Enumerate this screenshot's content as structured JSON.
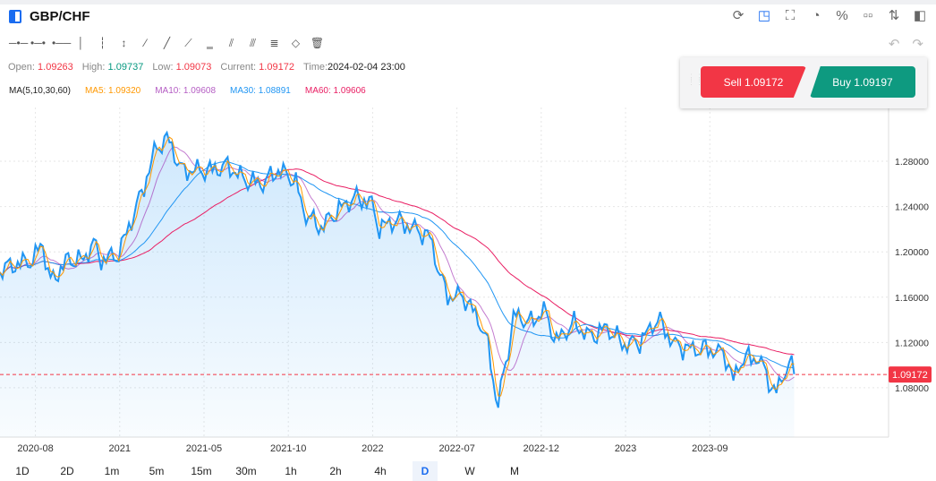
{
  "header": {
    "symbol": "GBP/CHF"
  },
  "right_tools": [
    "refresh-icon",
    "drawing-mode-icon",
    "indicator-board-icon",
    "pie-chart-icon",
    "percent-icon",
    "grid-layout-icon",
    "sort-icon",
    "panel-toggle-icon"
  ],
  "draw_tools": [
    {
      "name": "horizontal-ray-icon",
      "g": "─•─"
    },
    {
      "name": "horizontal-segment-icon",
      "g": "•─•"
    },
    {
      "name": "horizontal-line-icon",
      "g": "•──"
    },
    {
      "name": "vertical-ray-icon",
      "g": "│"
    },
    {
      "name": "vertical-segment-icon",
      "g": "┆"
    },
    {
      "name": "vertical-line-icon",
      "g": "↕"
    },
    {
      "name": "ray-icon",
      "g": "⁄"
    },
    {
      "name": "segment-icon",
      "g": "╱"
    },
    {
      "name": "straight-line-icon",
      "g": "⟋"
    },
    {
      "name": "price-line-icon",
      "g": "‗"
    },
    {
      "name": "parallel-lines-icon",
      "g": "⫽"
    },
    {
      "name": "price-channel-icon",
      "g": "⫻"
    },
    {
      "name": "fibonacci-icon",
      "g": "≣"
    },
    {
      "name": "eraser-icon",
      "g": "◇"
    },
    {
      "name": "trash-icon",
      "g": "🗑"
    }
  ],
  "info": {
    "open_label": "Open: ",
    "open": "1.09263",
    "high_label": "High: ",
    "high": "1.09737",
    "low_label": "Low: ",
    "low": "1.09073",
    "current_label": "Current: ",
    "current": "1.09172",
    "time_label": "Time:",
    "time": "2024-02-04 23:00"
  },
  "ma": {
    "label": "MA(5,10,30,60)",
    "ma5": "MA5: 1.09320",
    "ma10": "MA10: 1.09608",
    "ma30": "MA30: 1.08891",
    "ma60": "MA60: 1.09606"
  },
  "trade": {
    "sell": "Sell 1.09172",
    "buy": "Buy 1.09197"
  },
  "periods": [
    "1D",
    "2D",
    "1m",
    "5m",
    "15m",
    "30m",
    "1h",
    "2h",
    "4h",
    "D",
    "W",
    "M"
  ],
  "selected_period": "D",
  "colors": {
    "close": "#2196f3",
    "ma5": "#ff9800",
    "ma10": "#9c27b0",
    "ma30": "#2196f3",
    "ma60": "#e91e63",
    "down": "#f23645",
    "up": "#089981"
  },
  "chart_data": {
    "type": "area",
    "title": "GBP/CHF",
    "x_unit": "months since 2020-01",
    "x": [
      4.9,
      5.9,
      6.9,
      7.4,
      7.9,
      8.9,
      9.9,
      10.4,
      10.9,
      11.9,
      12.9,
      13.4,
      14.15,
      14.9,
      15.65,
      16.4,
      17.4,
      18.4,
      19.4,
      20.4,
      21.4,
      22.4,
      22.9,
      23.9,
      24.9,
      25.9,
      26.9,
      27.4,
      28.4,
      29.4,
      30.4,
      30.9,
      31.4,
      32.4,
      33.4,
      33.9,
      34.4,
      34.9,
      35.4,
      36.4,
      37.15,
      37.9,
      38.9,
      39.9,
      40.9,
      41.9,
      42.9,
      43.9,
      44.9,
      45.9,
      46.9,
      47.9,
      48.4,
      48.9,
      49.9,
      50.9,
      51.65,
      52.05
    ],
    "close": [
      1.185,
      1.189,
      1.193,
      1.209,
      1.173,
      1.193,
      1.193,
      1.209,
      1.193,
      1.197,
      1.236,
      1.256,
      1.292,
      1.3,
      1.272,
      1.272,
      1.272,
      1.276,
      1.264,
      1.26,
      1.272,
      1.264,
      1.236,
      1.221,
      1.236,
      1.248,
      1.244,
      1.221,
      1.228,
      1.221,
      1.213,
      1.185,
      1.161,
      1.161,
      1.137,
      1.114,
      1.062,
      1.102,
      1.145,
      1.137,
      1.149,
      1.121,
      1.137,
      1.125,
      1.133,
      1.118,
      1.121,
      1.141,
      1.118,
      1.114,
      1.114,
      1.11,
      1.086,
      1.106,
      1.106,
      1.074,
      1.102,
      1.092
    ],
    "x_ticks": [
      {
        "t": 7,
        "label": "2020-08"
      },
      {
        "t": 12,
        "label": "2021"
      },
      {
        "t": 17,
        "label": "2021-05"
      },
      {
        "t": 22,
        "label": "2021-10"
      },
      {
        "t": 27,
        "label": "2022"
      },
      {
        "t": 32,
        "label": "2022-07"
      },
      {
        "t": 37,
        "label": "2022-12"
      },
      {
        "t": 42,
        "label": "2023"
      },
      {
        "t": 47,
        "label": "2023-09"
      }
    ],
    "y_ticks": [
      "1.28000",
      "1.24000",
      "1.20000",
      "1.16000",
      "1.12000",
      "1.08000"
    ],
    "ylim": [
      1.0364,
      1.3196
    ],
    "xlim": [
      4.9,
      57.6
    ],
    "current_price": "1.09172",
    "series": [
      "Close",
      "MA5",
      "MA10",
      "MA30",
      "MA60"
    ],
    "grid": true
  }
}
